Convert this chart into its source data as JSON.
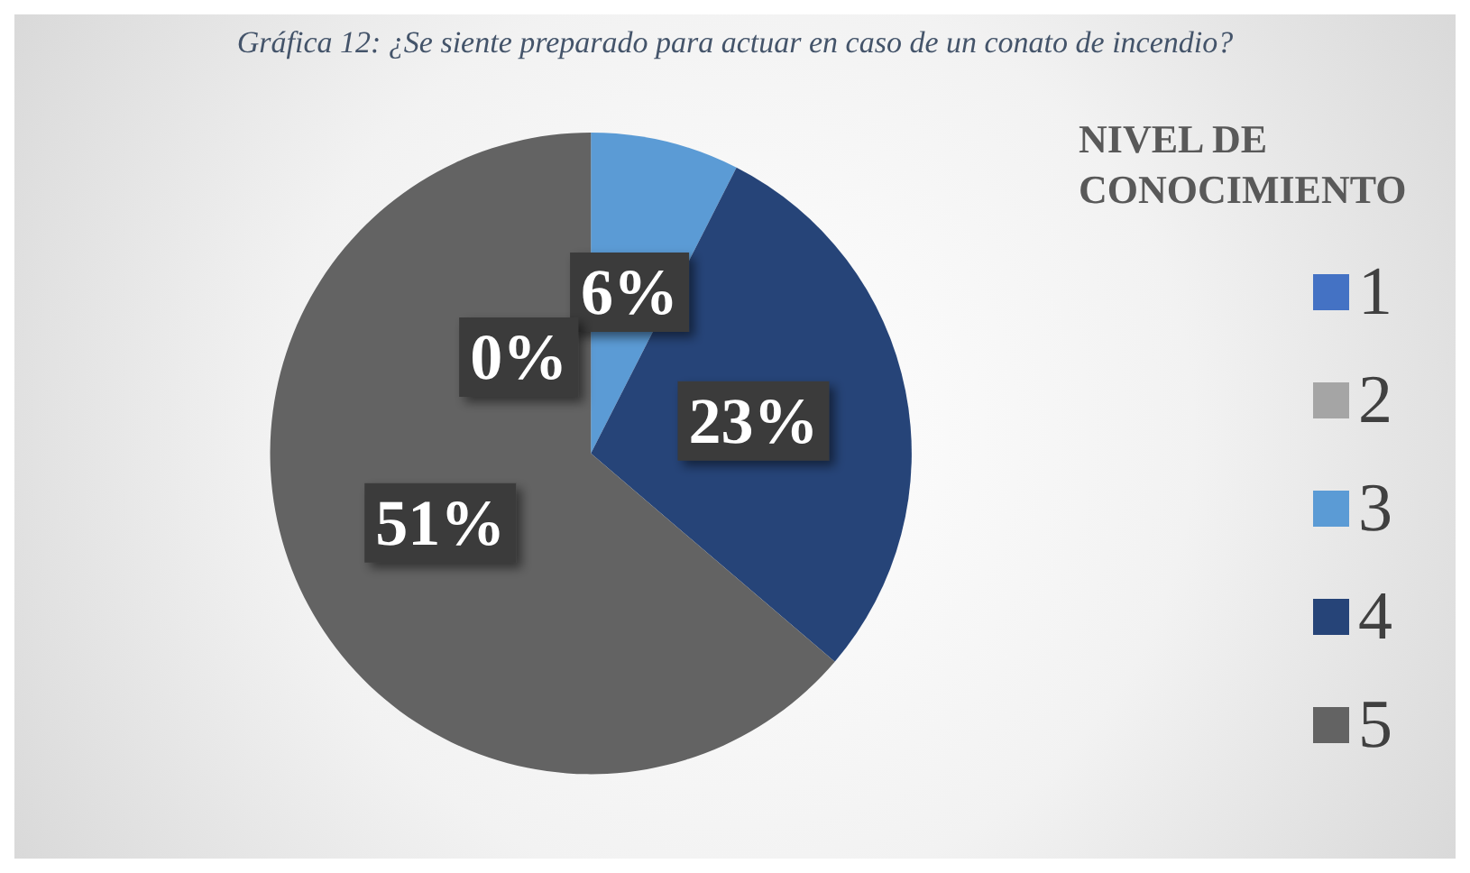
{
  "chart_data": {
    "type": "pie",
    "title": "Gráfica 12: ¿Se siente preparado para actuar en caso de un conato de incendio?",
    "legend_title": "NIVEL DE CONOCIMIENTO",
    "categories": [
      "1",
      "2",
      "3",
      "4",
      "5"
    ],
    "values": [
      0,
      0,
      6,
      23,
      51
    ],
    "value_labels": [
      "0%",
      null,
      "6%",
      "23%",
      "51%"
    ],
    "colors": [
      "#4472c4",
      "#a5a5a5",
      "#5b9bd5",
      "#264478",
      "#636363"
    ],
    "legend": "right"
  }
}
